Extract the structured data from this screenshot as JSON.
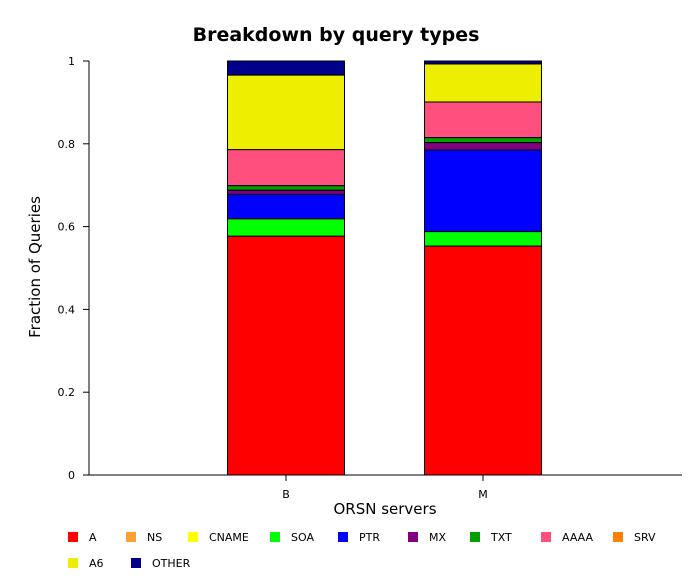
{
  "chart_data": {
    "type": "bar",
    "stacked": true,
    "title": "Breakdown by query types",
    "xlabel": "ORSN servers",
    "ylabel": "Fraction of Queries",
    "ylim": [
      0,
      1
    ],
    "yticks": [
      "0",
      "0.2",
      "0.4",
      "0.6",
      "0.8",
      "1"
    ],
    "categories": [
      "B",
      "M"
    ],
    "series": [
      {
        "name": "A",
        "color": "#ff0000",
        "values": [
          0.577,
          0.553
        ]
      },
      {
        "name": "NS",
        "color": "#ffa033",
        "values": [
          0.0,
          0.0
        ]
      },
      {
        "name": "CNAME",
        "color": "#ffff00",
        "values": [
          0.0,
          0.0
        ]
      },
      {
        "name": "SOA",
        "color": "#00ff00",
        "values": [
          0.042,
          0.035
        ]
      },
      {
        "name": "PTR",
        "color": "#0000ff",
        "values": [
          0.059,
          0.197
        ]
      },
      {
        "name": "MX",
        "color": "#800080",
        "values": [
          0.01,
          0.018
        ]
      },
      {
        "name": "TXT",
        "color": "#00a000",
        "values": [
          0.011,
          0.012
        ]
      },
      {
        "name": "AAAA",
        "color": "#ff4f7f",
        "values": [
          0.087,
          0.086
        ]
      },
      {
        "name": "SRV",
        "color": "#ff8000",
        "values": [
          0.0,
          0.0
        ]
      },
      {
        "name": "A6",
        "color": "#eeee00",
        "values": [
          0.18,
          0.092
        ]
      },
      {
        "name": "OTHER",
        "color": "#00008b",
        "values": [
          0.034,
          0.007
        ]
      }
    ],
    "legend_position": "bottom"
  }
}
